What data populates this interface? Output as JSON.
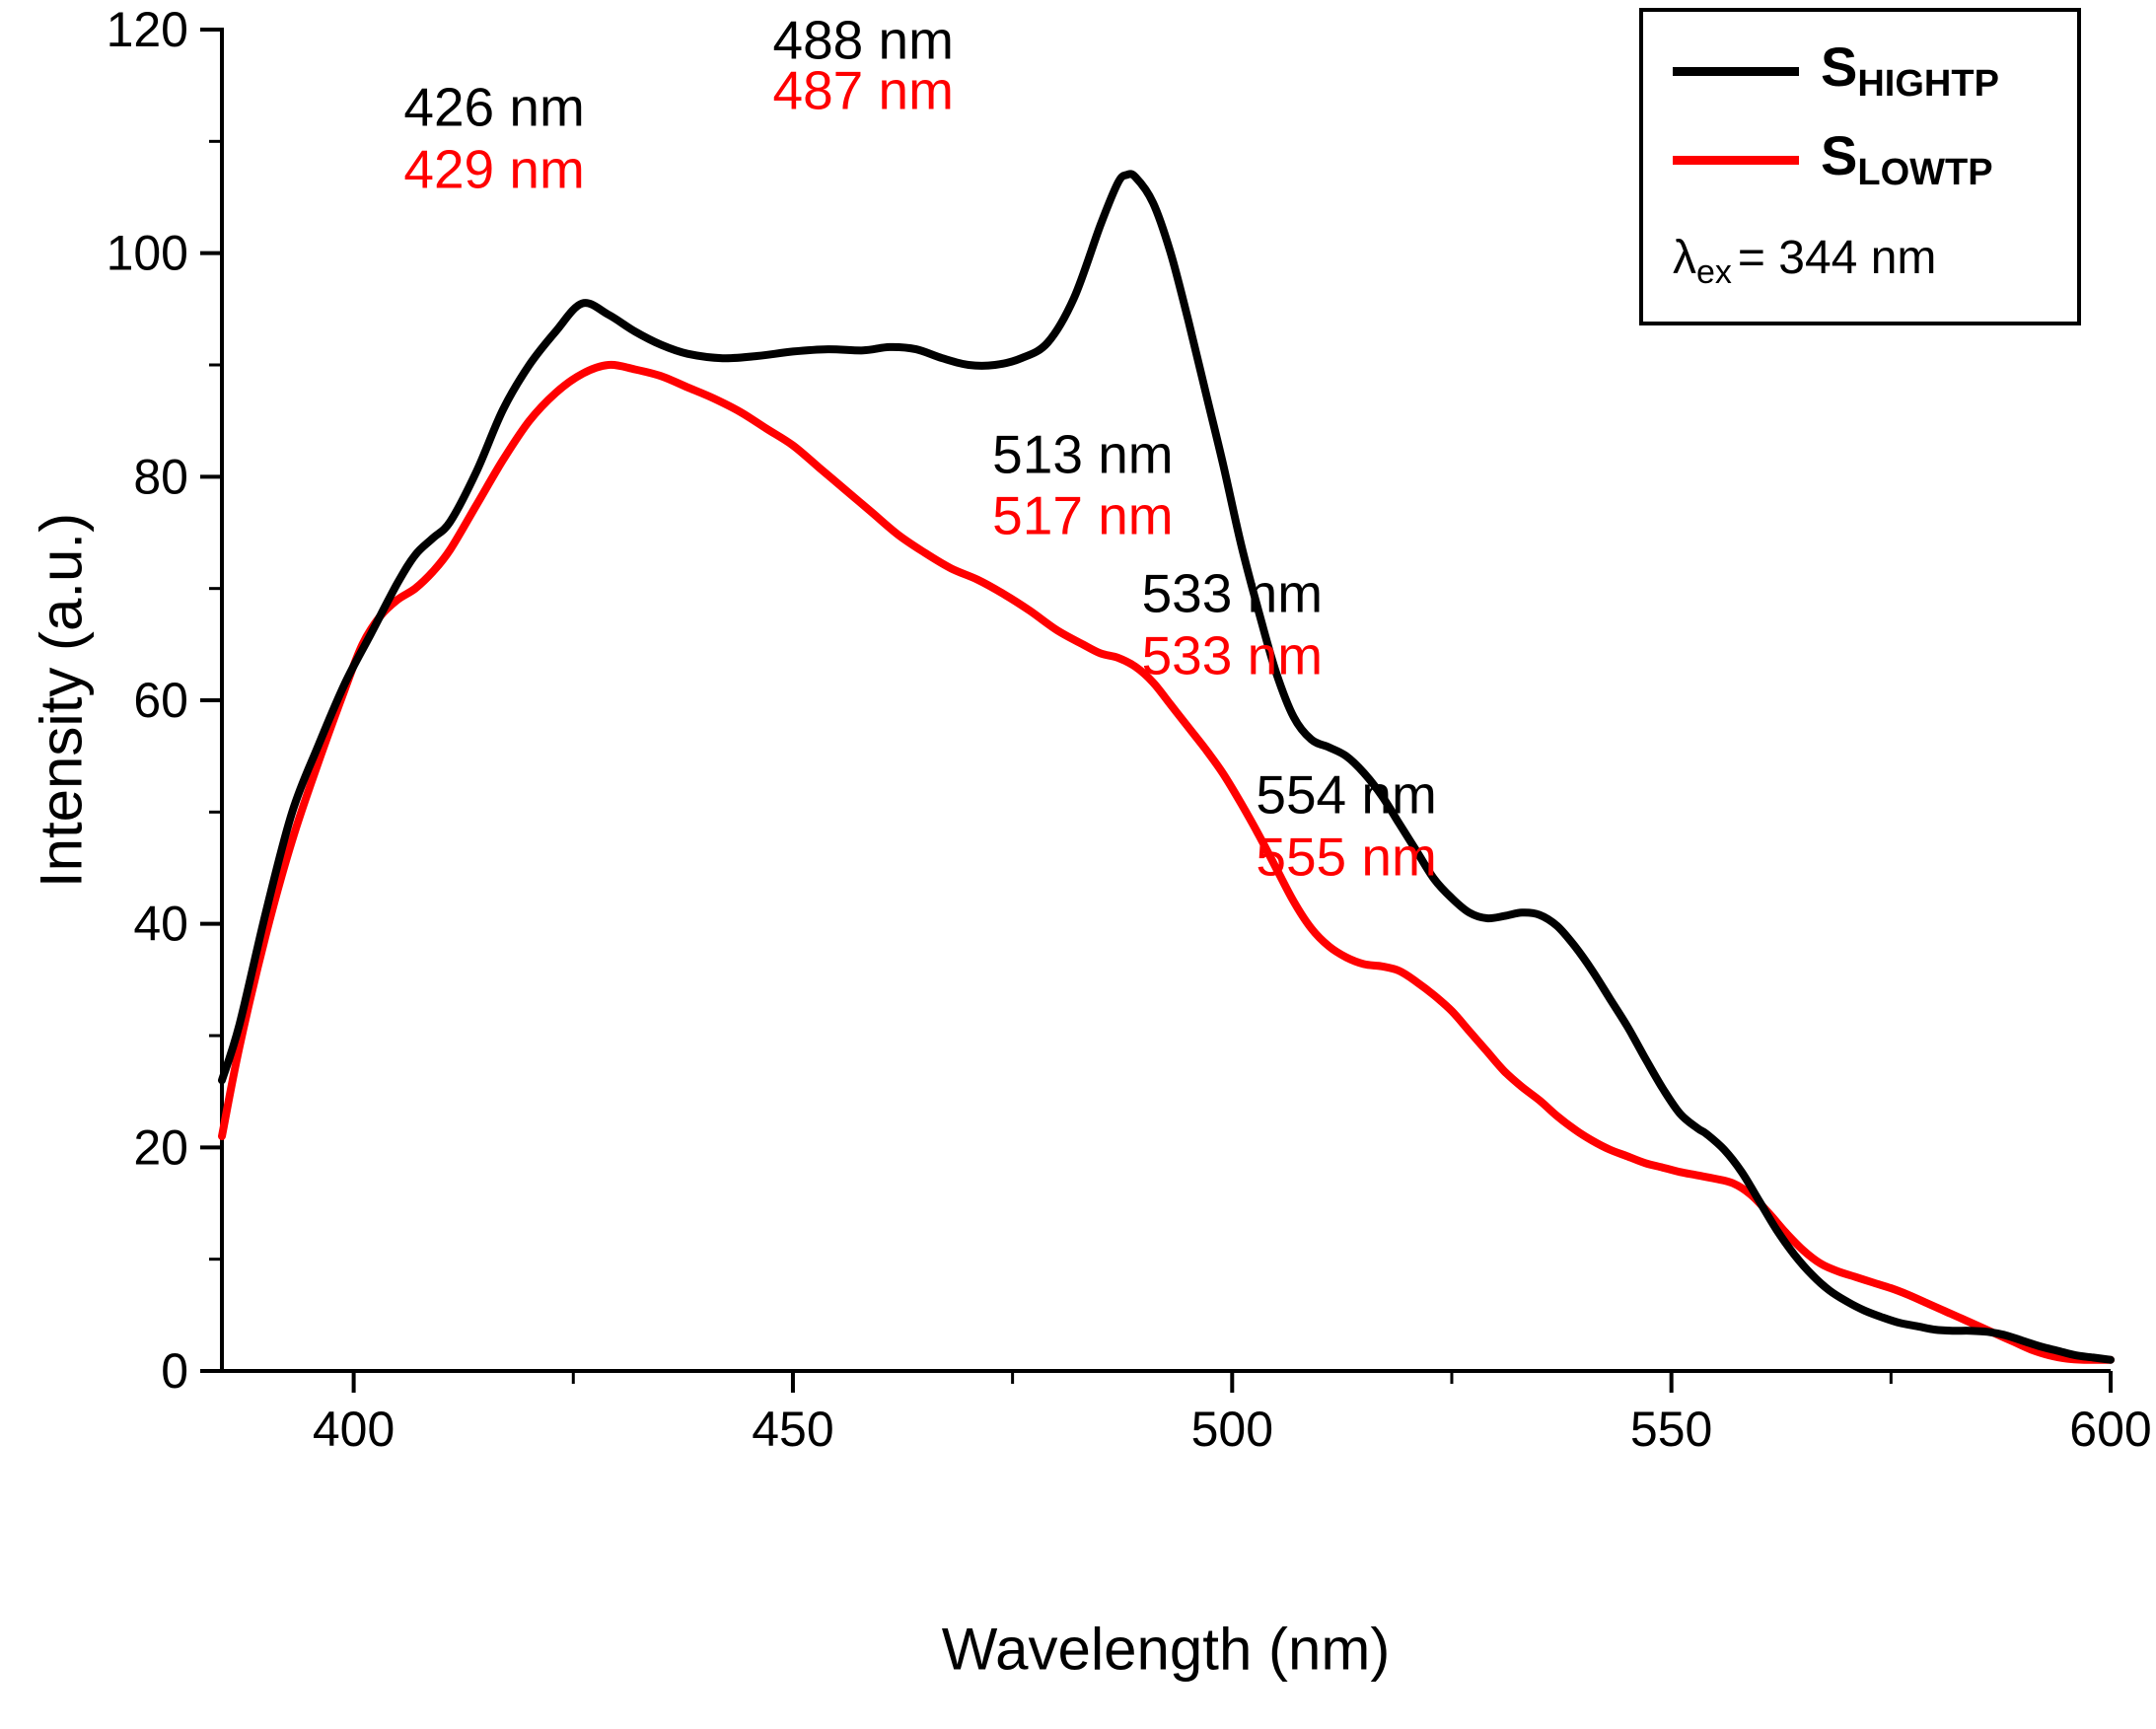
{
  "legend": {
    "entries": [
      {
        "main": "S",
        "sub": "HIGHTP",
        "color": "#000000"
      },
      {
        "main": "S",
        "sub": "LOWTP",
        "color": "#ff0000"
      }
    ],
    "note": {
      "symbol": "λ",
      "sub": "ex",
      "text": "= 344 nm"
    }
  },
  "chart_data": {
    "type": "line",
    "title": "",
    "xlabel": "Wavelength (nm)",
    "ylabel": "Intensity (a.u.)",
    "xlim": [
      385,
      600
    ],
    "ylim": [
      0,
      120
    ],
    "x_ticks": [
      400,
      450,
      500,
      550,
      600
    ],
    "y_ticks": [
      0,
      20,
      40,
      60,
      80,
      100,
      120
    ],
    "x_minor_ticks": [
      425,
      475,
      525,
      575
    ],
    "y_minor_ticks": [
      10,
      30,
      50,
      70,
      90,
      110
    ],
    "grid": false,
    "legend_position": "top-right",
    "excitation_note": "λex = 344 nm",
    "series": [
      {
        "name": "S_HIGHTP",
        "color": "#000000",
        "peaks_nm": [
          426,
          488,
          513,
          533,
          554
        ],
        "points": [
          [
            385,
            26
          ],
          [
            387,
            31
          ],
          [
            390,
            41
          ],
          [
            393,
            50
          ],
          [
            396,
            56
          ],
          [
            399,
            61.5
          ],
          [
            402,
            66
          ],
          [
            405,
            70.5
          ],
          [
            407,
            73
          ],
          [
            409,
            74.5
          ],
          [
            411,
            76
          ],
          [
            414,
            80.5
          ],
          [
            417,
            86
          ],
          [
            420,
            90
          ],
          [
            423,
            93
          ],
          [
            426,
            95.5
          ],
          [
            429,
            94.5
          ],
          [
            432,
            93
          ],
          [
            435,
            91.8
          ],
          [
            438,
            91
          ],
          [
            442,
            90.6
          ],
          [
            446,
            90.8
          ],
          [
            450,
            91.2
          ],
          [
            454,
            91.4
          ],
          [
            458,
            91.3
          ],
          [
            461,
            91.6
          ],
          [
            464,
            91.4
          ],
          [
            467,
            90.6
          ],
          [
            470,
            90
          ],
          [
            473,
            90
          ],
          [
            476,
            90.6
          ],
          [
            479,
            92
          ],
          [
            482,
            96
          ],
          [
            485,
            102.5
          ],
          [
            487,
            106.3
          ],
          [
            488,
            107
          ],
          [
            489,
            106.8
          ],
          [
            491,
            104.5
          ],
          [
            493,
            100
          ],
          [
            495,
            94
          ],
          [
            497,
            87.5
          ],
          [
            499,
            81
          ],
          [
            501,
            74
          ],
          [
            503,
            68
          ],
          [
            505,
            62.5
          ],
          [
            507,
            58.5
          ],
          [
            509,
            56.5
          ],
          [
            511,
            55.8
          ],
          [
            513,
            55
          ],
          [
            515,
            53.5
          ],
          [
            517,
            51.5
          ],
          [
            519,
            49
          ],
          [
            521,
            46.5
          ],
          [
            523,
            44
          ],
          [
            525,
            42.3
          ],
          [
            527,
            41
          ],
          [
            529,
            40.5
          ],
          [
            531,
            40.7
          ],
          [
            533,
            41
          ],
          [
            535,
            40.8
          ],
          [
            537,
            39.8
          ],
          [
            539,
            38
          ],
          [
            541,
            35.8
          ],
          [
            543,
            33.3
          ],
          [
            545,
            30.8
          ],
          [
            547,
            28
          ],
          [
            549,
            25.3
          ],
          [
            551,
            23
          ],
          [
            553,
            21.7
          ],
          [
            554,
            21.2
          ],
          [
            556,
            19.8
          ],
          [
            558,
            17.8
          ],
          [
            560,
            15.2
          ],
          [
            562,
            12.6
          ],
          [
            564,
            10.4
          ],
          [
            566,
            8.6
          ],
          [
            568,
            7.2
          ],
          [
            570,
            6.2
          ],
          [
            572,
            5.4
          ],
          [
            574,
            4.8
          ],
          [
            576,
            4.3
          ],
          [
            578,
            4
          ],
          [
            580,
            3.7
          ],
          [
            582,
            3.6
          ],
          [
            584,
            3.6
          ],
          [
            586,
            3.5
          ],
          [
            588,
            3.2
          ],
          [
            590,
            2.7
          ],
          [
            592,
            2.2
          ],
          [
            594,
            1.8
          ],
          [
            596,
            1.4
          ],
          [
            598,
            1.2
          ],
          [
            600,
            1
          ]
        ]
      },
      {
        "name": "S_LOWTP",
        "color": "#ff0000",
        "peaks_nm": [
          429,
          487,
          517,
          533,
          555
        ],
        "points": [
          [
            385,
            21
          ],
          [
            387,
            29
          ],
          [
            390,
            39
          ],
          [
            393,
            47.5
          ],
          [
            396,
            54.5
          ],
          [
            399,
            61
          ],
          [
            401,
            65
          ],
          [
            403,
            67.5
          ],
          [
            405,
            69
          ],
          [
            407,
            70
          ],
          [
            409,
            71.5
          ],
          [
            411,
            73.5
          ],
          [
            414,
            77.5
          ],
          [
            417,
            81.5
          ],
          [
            420,
            85
          ],
          [
            423,
            87.5
          ],
          [
            426,
            89.2
          ],
          [
            429,
            90
          ],
          [
            432,
            89.6
          ],
          [
            435,
            89
          ],
          [
            438,
            88
          ],
          [
            441,
            87
          ],
          [
            444,
            85.8
          ],
          [
            447,
            84.3
          ],
          [
            450,
            82.8
          ],
          [
            453,
            80.8
          ],
          [
            456,
            78.8
          ],
          [
            459,
            76.8
          ],
          [
            462,
            74.8
          ],
          [
            465,
            73.2
          ],
          [
            468,
            71.8
          ],
          [
            471,
            70.8
          ],
          [
            474,
            69.5
          ],
          [
            477,
            68
          ],
          [
            480,
            66.3
          ],
          [
            483,
            65
          ],
          [
            485,
            64.2
          ],
          [
            487,
            63.8
          ],
          [
            489,
            63
          ],
          [
            491,
            61.6
          ],
          [
            493,
            59.6
          ],
          [
            495,
            57.6
          ],
          [
            497,
            55.6
          ],
          [
            499,
            53.4
          ],
          [
            501,
            50.8
          ],
          [
            503,
            48
          ],
          [
            505,
            45
          ],
          [
            507,
            42
          ],
          [
            509,
            39.6
          ],
          [
            511,
            38
          ],
          [
            513,
            37
          ],
          [
            515,
            36.4
          ],
          [
            517,
            36.2
          ],
          [
            519,
            35.8
          ],
          [
            521,
            34.8
          ],
          [
            523,
            33.6
          ],
          [
            525,
            32.2
          ],
          [
            527,
            30.4
          ],
          [
            529,
            28.6
          ],
          [
            531,
            26.8
          ],
          [
            533,
            25.4
          ],
          [
            535,
            24.2
          ],
          [
            537,
            22.8
          ],
          [
            539,
            21.6
          ],
          [
            541,
            20.6
          ],
          [
            543,
            19.8
          ],
          [
            545,
            19.2
          ],
          [
            547,
            18.6
          ],
          [
            549,
            18.2
          ],
          [
            551,
            17.8
          ],
          [
            553,
            17.5
          ],
          [
            555,
            17.2
          ],
          [
            557,
            16.8
          ],
          [
            559,
            15.8
          ],
          [
            561,
            14.2
          ],
          [
            563,
            12.4
          ],
          [
            565,
            10.8
          ],
          [
            567,
            9.6
          ],
          [
            569,
            8.9
          ],
          [
            571,
            8.4
          ],
          [
            573,
            7.9
          ],
          [
            575,
            7.4
          ],
          [
            577,
            6.8
          ],
          [
            579,
            6.1
          ],
          [
            581,
            5.4
          ],
          [
            583,
            4.7
          ],
          [
            585,
            4
          ],
          [
            587,
            3.3
          ],
          [
            589,
            2.6
          ],
          [
            591,
            1.9
          ],
          [
            593,
            1.4
          ],
          [
            595,
            1.1
          ],
          [
            597,
            1
          ],
          [
            600,
            1
          ]
        ]
      }
    ],
    "annotations": [
      {
        "x": 416,
        "black_text": "426 nm",
        "black_y": 113,
        "red_text": "429 nm",
        "red_y": 107.5
      },
      {
        "x": 458,
        "black_text": "488 nm",
        "black_y": 119,
        "red_text": "487 nm",
        "red_y": 114.5
      },
      {
        "x": 483,
        "black_text": "513 nm",
        "black_y": 82,
        "red_text": "517 nm",
        "red_y": 76.5
      },
      {
        "x": 500,
        "black_text": "533 nm",
        "black_y": 69.5,
        "red_text": "533 nm",
        "red_y": 64
      },
      {
        "x": 513,
        "black_text": "554 nm",
        "black_y": 51.5,
        "red_text": "555 nm",
        "red_y": 46
      }
    ]
  }
}
